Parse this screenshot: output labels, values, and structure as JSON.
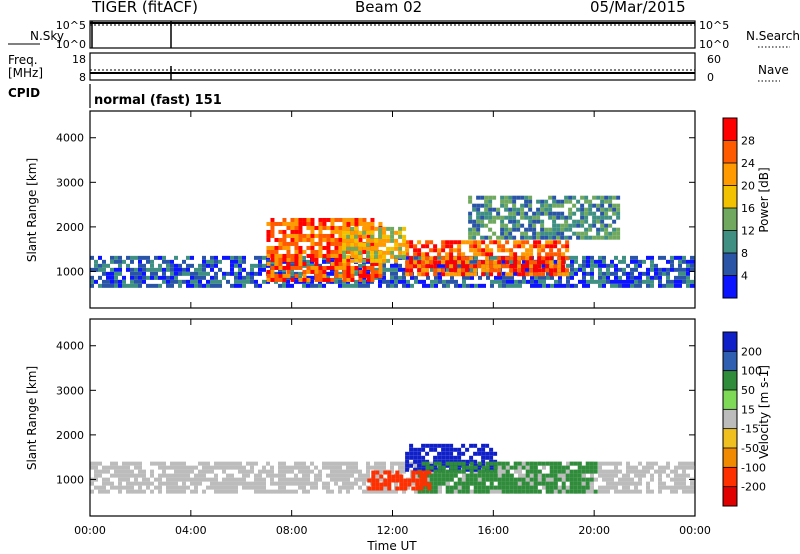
{
  "header": {
    "left_title": "TIGER (fitACF)",
    "center_title": "Beam 02",
    "right_title": "05/Mar/2015"
  },
  "chart_data": [
    {
      "type": "line",
      "panel": "noise",
      "left_label": "N.Sky",
      "right_label": "N.Search",
      "left_ticks": [
        "10^5",
        "10^0"
      ],
      "right_ticks": [
        "10^5",
        "10^0"
      ]
    },
    {
      "type": "line",
      "panel": "frequency",
      "left_label": [
        "Freq.",
        "[MHz]"
      ],
      "right_label": "Nave",
      "left_ticks": [
        "18",
        "8"
      ],
      "right_ticks": [
        "60",
        "0"
      ]
    },
    {
      "type": "table",
      "panel": "cpid",
      "label": "CPID",
      "text": "normal (fast) 151"
    },
    {
      "type": "heatmap",
      "panel": "power",
      "title": "Power [dB]",
      "ylabel": "Slant Range [km]",
      "ylim": [
        180,
        4600
      ],
      "yticks": [
        "4000",
        "3000",
        "2000",
        "1000"
      ],
      "colorbar": {
        "label": "Power [dB]",
        "ticks": [
          "28",
          "24",
          "20",
          "16",
          "12",
          "8",
          "4"
        ],
        "colors": [
          "#ff0000",
          "#ff5a00",
          "#ff9a00",
          "#f2c200",
          "#6fa85e",
          "#3f8f82",
          "#2a55a6",
          "#0b13ff"
        ]
      },
      "regions": [
        {
          "t0": 0.0,
          "t1": 24.0,
          "r0": 700,
          "r1": 1350,
          "level": 6
        },
        {
          "t0": 7.0,
          "t1": 11.5,
          "r0": 850,
          "r1": 2200,
          "level": 1
        },
        {
          "t0": 12.5,
          "t1": 19.0,
          "r0": 900,
          "r1": 1700,
          "level": 1
        },
        {
          "t0": 15.0,
          "t1": 21.0,
          "r0": 1800,
          "r1": 2700,
          "level": 5
        },
        {
          "t0": 10.0,
          "t1": 12.5,
          "r0": 1200,
          "r1": 2000,
          "level": 3
        }
      ]
    },
    {
      "type": "heatmap",
      "panel": "velocity",
      "title": "Velocity [m s-1]",
      "ylabel": "Slant Range [km]",
      "xlabel": "Time UT",
      "ylim": [
        180,
        4600
      ],
      "yticks": [
        "4000",
        "3000",
        "2000",
        "1000"
      ],
      "xticks": [
        "00:00",
        "04:00",
        "08:00",
        "12:00",
        "16:00",
        "20:00",
        "00:00"
      ],
      "colorbar": {
        "label": "Velocity [m s-1]",
        "ticks": [
          "200",
          "100",
          "50",
          "15",
          "-15",
          "-50",
          "-100",
          "-200"
        ],
        "colors": [
          "#1020c8",
          "#2f5fb0",
          "#2e8c3a",
          "#7ed957",
          "#bcbcbc",
          "#f0c020",
          "#f08a00",
          "#ff3000",
          "#e00000"
        ]
      },
      "regions": [
        {
          "t0": 0.0,
          "t1": 24.0,
          "r0": 700,
          "r1": 1400,
          "vel": 0
        },
        {
          "t0": 12.5,
          "t1": 16.0,
          "r0": 1200,
          "r1": 1800,
          "vel": 200
        },
        {
          "t0": 13.0,
          "t1": 20.0,
          "r0": 700,
          "r1": 1400,
          "vel": 60
        },
        {
          "t0": 11.0,
          "t1": 13.5,
          "r0": 800,
          "r1": 1200,
          "vel": -150
        }
      ]
    }
  ]
}
